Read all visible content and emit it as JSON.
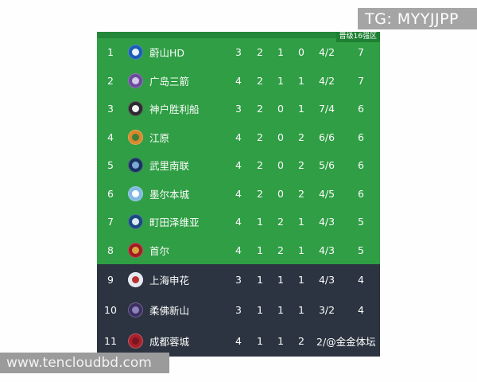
{
  "page": {
    "tg_banner": "TG: MYYJJPP",
    "site_banner": "www.tencloudbd.com"
  },
  "table": {
    "qualify_badge": "晋级16强区",
    "colors": {
      "green_zone": "#2f9e44",
      "dark_zone": "#2b3440",
      "badge_bg": "#1e8033",
      "topbar": "#24873a",
      "row_text": "#ffffff"
    },
    "rows": [
      {
        "pos": "1",
        "team": "蔚山HD",
        "played": "3",
        "won": "2",
        "drawn": "1",
        "lost": "0",
        "goals": "4/2",
        "points": "7",
        "zone": "green",
        "logo": {
          "c1": "#1a5db4",
          "c2": "#e9f1fb"
        }
      },
      {
        "pos": "2",
        "team": "广岛三箭",
        "played": "4",
        "won": "2",
        "drawn": "1",
        "lost": "1",
        "goals": "4/2",
        "points": "7",
        "zone": "green",
        "logo": {
          "c1": "#6a4b9c",
          "c2": "#d4c9e8"
        }
      },
      {
        "pos": "3",
        "team": "神户胜利船",
        "played": "3",
        "won": "2",
        "drawn": "0",
        "lost": "1",
        "goals": "7/4",
        "points": "6",
        "zone": "green",
        "logo": {
          "c1": "#2b2b30",
          "c2": "#f4f4f4"
        }
      },
      {
        "pos": "4",
        "team": "江原",
        "played": "4",
        "won": "2",
        "drawn": "0",
        "lost": "2",
        "goals": "6/6",
        "points": "6",
        "zone": "green",
        "logo": {
          "c1": "#d8882a",
          "c2": "#3f7d3a"
        }
      },
      {
        "pos": "5",
        "team": "武里南联",
        "played": "4",
        "won": "2",
        "drawn": "0",
        "lost": "2",
        "goals": "5/6",
        "points": "6",
        "zone": "green",
        "logo": {
          "c1": "#16335e",
          "c2": "#7da7d9"
        }
      },
      {
        "pos": "6",
        "team": "墨尔本城",
        "played": "4",
        "won": "2",
        "drawn": "0",
        "lost": "2",
        "goals": "4/5",
        "points": "6",
        "zone": "green",
        "logo": {
          "c1": "#7fb9e3",
          "c2": "#ffffff"
        }
      },
      {
        "pos": "7",
        "team": "町田泽维亚",
        "played": "4",
        "won": "1",
        "drawn": "2",
        "lost": "1",
        "goals": "4/3",
        "points": "5",
        "zone": "green",
        "logo": {
          "c1": "#174a7c",
          "c2": "#dce9f5"
        }
      },
      {
        "pos": "8",
        "team": "首尔",
        "played": "4",
        "won": "1",
        "drawn": "2",
        "lost": "1",
        "goals": "4/3",
        "points": "5",
        "zone": "green",
        "logo": {
          "c1": "#a01c24",
          "c2": "#d8a83c"
        }
      },
      {
        "pos": "9",
        "team": "上海申花",
        "played": "3",
        "won": "1",
        "drawn": "1",
        "lost": "1",
        "goals": "4/3",
        "points": "4",
        "zone": "dark",
        "logo": {
          "c1": "#e4e9f1",
          "c2": "#b8312f"
        }
      },
      {
        "pos": "10",
        "team": "柔佛新山",
        "played": "3",
        "won": "1",
        "drawn": "1",
        "lost": "1",
        "goals": "3/2",
        "points": "4",
        "zone": "dark",
        "logo": {
          "c1": "#3c2f63",
          "c2": "#8c84b8"
        }
      },
      {
        "pos": "11",
        "team": "成都蓉城",
        "played": "4",
        "won": "1",
        "drawn": "1",
        "lost": "2",
        "goals": "2/@金金体坛",
        "points": "",
        "zone": "dark",
        "logo": {
          "c1": "#a8202c",
          "c2": "#7a1620"
        }
      }
    ]
  }
}
